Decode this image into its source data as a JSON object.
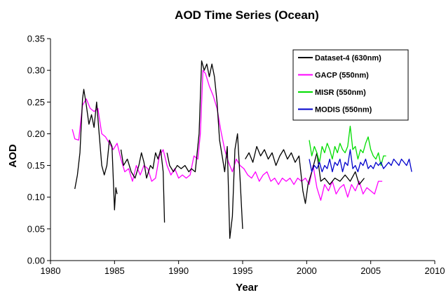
{
  "chart_data": {
    "type": "line",
    "title": "AOD Time Series (Ocean)",
    "xlabel": "Year",
    "ylabel": "AOD",
    "xlim": [
      1980,
      2010
    ],
    "ylim": [
      0,
      0.35
    ],
    "xticks": [
      "1980",
      "1985",
      "1990",
      "1995",
      "2000",
      "2005",
      "2010"
    ],
    "yticks": [
      "0.00",
      "0.05",
      "0.10",
      "0.15",
      "0.20",
      "0.25",
      "0.30",
      "0.35"
    ],
    "grid": false,
    "legend": "top-right",
    "series": [
      {
        "name": "Dataset-4 (630nm)",
        "color": "#000000",
        "segments": [
          [
            [
              1981.9,
              0.113
            ],
            [
              1982.1,
              0.135
            ],
            [
              1982.3,
              0.17
            ],
            [
              1982.5,
              0.255
            ],
            [
              1982.6,
              0.27
            ],
            [
              1982.8,
              0.245
            ],
            [
              1983.0,
              0.215
            ],
            [
              1983.2,
              0.23
            ],
            [
              1983.4,
              0.21
            ],
            [
              1983.6,
              0.25
            ],
            [
              1983.8,
              0.2
            ],
            [
              1984.0,
              0.15
            ],
            [
              1984.2,
              0.135
            ],
            [
              1984.4,
              0.15
            ],
            [
              1984.6,
              0.19
            ],
            [
              1984.8,
              0.18
            ],
            [
              1985.0,
              0.08
            ],
            [
              1985.1,
              0.115
            ],
            [
              1985.2,
              0.105
            ]
          ],
          [
            [
              1985.5,
              0.175
            ],
            [
              1985.7,
              0.15
            ],
            [
              1986.0,
              0.16
            ],
            [
              1986.3,
              0.14
            ],
            [
              1986.6,
              0.13
            ],
            [
              1986.9,
              0.15
            ],
            [
              1987.1,
              0.17
            ],
            [
              1987.3,
              0.155
            ],
            [
              1987.5,
              0.13
            ],
            [
              1987.8,
              0.15
            ],
            [
              1988.0,
              0.145
            ],
            [
              1988.2,
              0.17
            ],
            [
              1988.4,
              0.16
            ],
            [
              1988.6,
              0.175
            ],
            [
              1988.8,
              0.14
            ],
            [
              1988.9,
              0.06
            ]
          ],
          [
            [
              1989.1,
              0.17
            ],
            [
              1989.3,
              0.15
            ],
            [
              1989.6,
              0.14
            ],
            [
              1989.9,
              0.15
            ],
            [
              1990.2,
              0.145
            ],
            [
              1990.5,
              0.15
            ],
            [
              1990.8,
              0.14
            ],
            [
              1991.0,
              0.145
            ],
            [
              1991.3,
              0.14
            ],
            [
              1991.6,
              0.2
            ],
            [
              1991.8,
              0.315
            ],
            [
              1992.0,
              0.3
            ],
            [
              1992.2,
              0.31
            ],
            [
              1992.4,
              0.29
            ],
            [
              1992.6,
              0.31
            ],
            [
              1992.8,
              0.29
            ],
            [
              1993.0,
              0.25
            ],
            [
              1993.2,
              0.19
            ],
            [
              1993.4,
              0.165
            ],
            [
              1993.6,
              0.14
            ],
            [
              1993.8,
              0.18
            ],
            [
              1994.0,
              0.035
            ],
            [
              1994.2,
              0.07
            ],
            [
              1994.4,
              0.175
            ],
            [
              1994.6,
              0.2
            ],
            [
              1994.8,
              0.13
            ],
            [
              1995.0,
              0.05
            ]
          ],
          [
            [
              1995.2,
              0.16
            ],
            [
              1995.5,
              0.17
            ],
            [
              1995.8,
              0.155
            ],
            [
              1996.1,
              0.18
            ],
            [
              1996.4,
              0.165
            ],
            [
              1996.7,
              0.175
            ],
            [
              1997.0,
              0.16
            ],
            [
              1997.3,
              0.17
            ],
            [
              1997.6,
              0.15
            ],
            [
              1997.9,
              0.165
            ],
            [
              1998.2,
              0.175
            ],
            [
              1998.5,
              0.16
            ],
            [
              1998.8,
              0.17
            ],
            [
              1999.1,
              0.155
            ],
            [
              1999.4,
              0.165
            ],
            [
              1999.7,
              0.11
            ],
            [
              1999.9,
              0.09
            ],
            [
              2000.1,
              0.12
            ],
            [
              2000.4,
              0.14
            ],
            [
              2000.8,
              0.17
            ],
            [
              2001.1,
              0.125
            ],
            [
              2001.4,
              0.13
            ],
            [
              2001.8,
              0.12
            ],
            [
              2002.2,
              0.13
            ],
            [
              2002.6,
              0.125
            ],
            [
              2003.0,
              0.135
            ],
            [
              2003.4,
              0.125
            ],
            [
              2003.8,
              0.14
            ],
            [
              2004.1,
              0.12
            ],
            [
              2004.5,
              0.13
            ]
          ]
        ]
      },
      {
        "name": "GACP (550nm)",
        "color": "#ff00ff",
        "segments": [
          [
            [
              1981.7,
              0.207
            ],
            [
              1981.9,
              0.192
            ],
            [
              1982.2,
              0.19
            ],
            [
              1982.5,
              0.245
            ],
            [
              1982.8,
              0.255
            ],
            [
              1983.1,
              0.24
            ],
            [
              1983.4,
              0.235
            ],
            [
              1983.7,
              0.24
            ],
            [
              1984.0,
              0.2
            ],
            [
              1984.3,
              0.195
            ],
            [
              1984.6,
              0.185
            ],
            [
              1984.9,
              0.175
            ],
            [
              1985.2,
              0.185
            ],
            [
              1985.5,
              0.16
            ],
            [
              1985.8,
              0.14
            ],
            [
              1986.1,
              0.145
            ],
            [
              1986.4,
              0.125
            ],
            [
              1986.7,
              0.15
            ],
            [
              1987.0,
              0.135
            ],
            [
              1987.3,
              0.15
            ],
            [
              1987.6,
              0.145
            ],
            [
              1987.9,
              0.125
            ],
            [
              1988.2,
              0.13
            ],
            [
              1988.5,
              0.165
            ],
            [
              1988.8,
              0.175
            ],
            [
              1989.1,
              0.15
            ],
            [
              1989.4,
              0.135
            ],
            [
              1989.7,
              0.145
            ],
            [
              1990.0,
              0.13
            ],
            [
              1990.3,
              0.135
            ],
            [
              1990.6,
              0.13
            ],
            [
              1990.9,
              0.135
            ],
            [
              1991.2,
              0.165
            ],
            [
              1991.5,
              0.16
            ],
            [
              1991.7,
              0.2
            ],
            [
              1991.9,
              0.3
            ],
            [
              1992.1,
              0.295
            ],
            [
              1992.4,
              0.275
            ],
            [
              1992.7,
              0.26
            ],
            [
              1993.0,
              0.24
            ],
            [
              1993.3,
              0.205
            ],
            [
              1993.6,
              0.175
            ],
            [
              1993.9,
              0.155
            ],
            [
              1994.2,
              0.14
            ],
            [
              1994.5,
              0.16
            ],
            [
              1994.8,
              0.15
            ],
            [
              1995.1,
              0.145
            ],
            [
              1995.4,
              0.135
            ],
            [
              1995.7,
              0.13
            ],
            [
              1996.0,
              0.14
            ],
            [
              1996.3,
              0.125
            ],
            [
              1996.6,
              0.135
            ],
            [
              1996.9,
              0.14
            ],
            [
              1997.2,
              0.125
            ],
            [
              1997.5,
              0.13
            ],
            [
              1997.8,
              0.12
            ],
            [
              1998.1,
              0.13
            ],
            [
              1998.4,
              0.125
            ],
            [
              1998.7,
              0.13
            ],
            [
              1999.0,
              0.12
            ],
            [
              1999.3,
              0.13
            ],
            [
              1999.6,
              0.125
            ],
            [
              1999.9,
              0.13
            ],
            [
              2000.2,
              0.12
            ],
            [
              2000.5,
              0.15
            ],
            [
              2000.8,
              0.115
            ],
            [
              2001.1,
              0.095
            ],
            [
              2001.4,
              0.12
            ],
            [
              2001.7,
              0.11
            ],
            [
              2002.0,
              0.125
            ],
            [
              2002.3,
              0.105
            ],
            [
              2002.6,
              0.115
            ],
            [
              2002.9,
              0.12
            ],
            [
              2003.2,
              0.1
            ],
            [
              2003.5,
              0.12
            ],
            [
              2003.8,
              0.11
            ],
            [
              2004.1,
              0.125
            ],
            [
              2004.4,
              0.105
            ],
            [
              2004.7,
              0.115
            ],
            [
              2005.0,
              0.11
            ],
            [
              2005.3,
              0.105
            ],
            [
              2005.6,
              0.125
            ],
            [
              2005.9,
              0.125
            ]
          ]
        ]
      },
      {
        "name": "MISR (550nm)",
        "color": "#00dd00",
        "segments": [
          [
            [
              2000.2,
              0.19
            ],
            [
              2000.4,
              0.165
            ],
            [
              2000.6,
              0.18
            ],
            [
              2000.8,
              0.17
            ],
            [
              2001.0,
              0.155
            ],
            [
              2001.2,
              0.18
            ],
            [
              2001.4,
              0.17
            ],
            [
              2001.6,
              0.185
            ],
            [
              2001.8,
              0.175
            ],
            [
              2002.0,
              0.16
            ],
            [
              2002.2,
              0.18
            ],
            [
              2002.4,
              0.17
            ],
            [
              2002.6,
              0.185
            ],
            [
              2002.8,
              0.175
            ],
            [
              2003.0,
              0.17
            ],
            [
              2003.2,
              0.18
            ],
            [
              2003.4,
              0.212
            ],
            [
              2003.6,
              0.175
            ],
            [
              2003.8,
              0.18
            ],
            [
              2004.0,
              0.16
            ],
            [
              2004.2,
              0.175
            ],
            [
              2004.4,
              0.17
            ],
            [
              2004.6,
              0.185
            ],
            [
              2004.8,
              0.195
            ],
            [
              2005.0,
              0.175
            ],
            [
              2005.2,
              0.165
            ],
            [
              2005.4,
              0.16
            ],
            [
              2005.6,
              0.17
            ],
            [
              2005.8,
              0.15
            ],
            [
              2006.0,
              0.165
            ],
            [
              2006.2,
              0.165
            ]
          ]
        ]
      },
      {
        "name": "MODIS (550nm)",
        "color": "#0000cc",
        "segments": [
          [
            [
              2000.2,
              0.16
            ],
            [
              2000.4,
              0.14
            ],
            [
              2000.6,
              0.15
            ],
            [
              2000.8,
              0.145
            ],
            [
              2001.0,
              0.155
            ],
            [
              2001.2,
              0.14
            ],
            [
              2001.4,
              0.15
            ],
            [
              2001.6,
              0.145
            ],
            [
              2001.8,
              0.16
            ],
            [
              2002.0,
              0.14
            ],
            [
              2002.2,
              0.155
            ],
            [
              2002.4,
              0.15
            ],
            [
              2002.6,
              0.16
            ],
            [
              2002.8,
              0.14
            ],
            [
              2003.0,
              0.155
            ],
            [
              2003.2,
              0.15
            ],
            [
              2003.4,
              0.175
            ],
            [
              2003.6,
              0.145
            ],
            [
              2003.8,
              0.15
            ],
            [
              2004.0,
              0.14
            ],
            [
              2004.2,
              0.155
            ],
            [
              2004.4,
              0.15
            ],
            [
              2004.6,
              0.16
            ],
            [
              2004.8,
              0.145
            ],
            [
              2005.0,
              0.15
            ],
            [
              2005.2,
              0.145
            ],
            [
              2005.4,
              0.155
            ],
            [
              2005.6,
              0.15
            ],
            [
              2005.8,
              0.155
            ],
            [
              2006.0,
              0.145
            ],
            [
              2006.2,
              0.15
            ],
            [
              2006.4,
              0.155
            ],
            [
              2006.6,
              0.15
            ],
            [
              2006.8,
              0.16
            ],
            [
              2007.0,
              0.155
            ],
            [
              2007.2,
              0.15
            ],
            [
              2007.4,
              0.16
            ],
            [
              2007.6,
              0.155
            ],
            [
              2007.8,
              0.15
            ],
            [
              2008.0,
              0.16
            ],
            [
              2008.2,
              0.14
            ]
          ]
        ]
      }
    ]
  }
}
